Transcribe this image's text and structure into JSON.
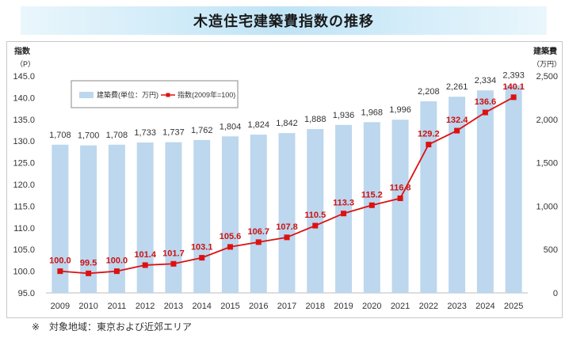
{
  "page_title": "木造住宅建築費指数の推移",
  "footnote": "※　対象地域：東京および近郊エリア",
  "colors": {
    "bar": "#bcd7ee",
    "line": "#dd1111",
    "line_label": "#cc1111"
  },
  "chart_data": {
    "type": "bar+line",
    "categories": [
      "2009",
      "2010",
      "2011",
      "2012",
      "2013",
      "2014",
      "2015",
      "2016",
      "2017",
      "2018",
      "2019",
      "2020",
      "2021",
      "2022",
      "2023",
      "2024",
      "2025"
    ],
    "left_axis": {
      "title": "指数",
      "unit": "（P）",
      "min": 95.0,
      "max": 145.0,
      "ticks": [
        "95.0",
        "100.0",
        "105.0",
        "110.0",
        "115.0",
        "120.0",
        "125.0",
        "130.0",
        "135.0",
        "140.0",
        "145.0"
      ]
    },
    "right_axis": {
      "title": "建築費",
      "unit": "（万円）",
      "min": 0,
      "max": 2500,
      "ticks": [
        "0",
        "500",
        "1,000",
        "1,500",
        "2,000",
        "2,500"
      ]
    },
    "grid": false,
    "legend_position": "top-left",
    "series": [
      {
        "name": "建築費(単位：万円)",
        "kind": "bar",
        "axis": "right",
        "values": [
          1708,
          1700,
          1708,
          1733,
          1737,
          1762,
          1804,
          1824,
          1842,
          1888,
          1936,
          1968,
          1996,
          2208,
          2261,
          2334,
          2393
        ],
        "labels": [
          "1,708",
          "1,700",
          "1,708",
          "1,733",
          "1,737",
          "1,762",
          "1,804",
          "1,824",
          "1,842",
          "1,888",
          "1,936",
          "1,968",
          "1,996",
          "2,208",
          "2,261",
          "2,334",
          "2,393"
        ]
      },
      {
        "name": "指数(2009年=100)",
        "kind": "line",
        "axis": "left",
        "values": [
          100.0,
          99.5,
          100.0,
          101.4,
          101.7,
          103.1,
          105.6,
          106.7,
          107.8,
          110.5,
          113.3,
          115.2,
          116.8,
          129.2,
          132.4,
          136.6,
          140.1
        ],
        "labels": [
          "100.0",
          "99.5",
          "100.0",
          "101.4",
          "101.7",
          "103.1",
          "105.6",
          "106.7",
          "107.8",
          "110.5",
          "113.3",
          "115.2",
          "116.8",
          "129.2",
          "132.4",
          "136.6",
          "140.1"
        ]
      }
    ]
  }
}
